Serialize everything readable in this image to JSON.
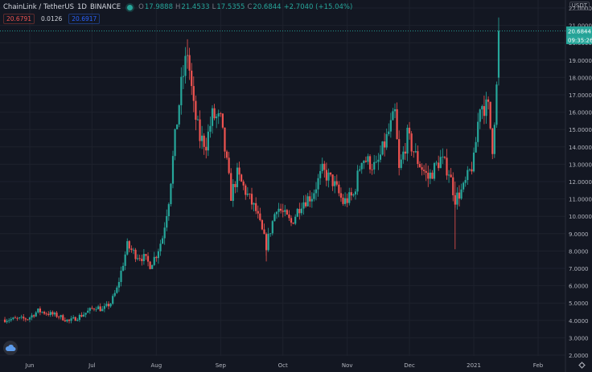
{
  "header": {
    "title": "ChainLink / TetherUS",
    "timeframe": "1D",
    "exchange": "BINANCE",
    "o_label": "O",
    "o_value": "17.9888",
    "h_label": "H",
    "h_value": "21.4533",
    "l_label": "L",
    "l_value": "17.5355",
    "c_label": "C",
    "c_value": "20.6844",
    "change": "+2.7040 (+15.04%)"
  },
  "indicators": {
    "value1": "20.6791",
    "value2": "0.0126",
    "value3": "20.6917"
  },
  "currency_badge": "USDT",
  "last_price_label": "20.6844",
  "countdown_label": "09:35:26",
  "icons": {
    "logo": "cloud-logo-icon",
    "settings": "gear-icon"
  },
  "colors": {
    "up": "#26a69a",
    "down": "#ef5350",
    "background": "#131722",
    "price_line": "#26a69a"
  },
  "chart_data": {
    "type": "candlestick",
    "title": "",
    "xlabel": "",
    "ylabel": "",
    "ylim": [
      1.95,
      22.2
    ],
    "y_ticks": [
      "2.0000",
      "3.0000",
      "4.0000",
      "5.0000",
      "6.0000",
      "7.0000",
      "8.0000",
      "9.0000",
      "10.0000",
      "11.0000",
      "12.0000",
      "13.0000",
      "14.0000",
      "15.0000",
      "16.0000",
      "17.0000",
      "18.0000",
      "19.0000",
      "20.0000",
      "21.0000",
      "22.0000"
    ],
    "x_ticks": [
      "Jun",
      "Jul",
      "Aug",
      "Sep",
      "Oct",
      "Nov",
      "Dec",
      "2021",
      "Feb"
    ],
    "grid": true,
    "last_price": 20.6844,
    "series": [
      {
        "anchors": [
          [
            "2020-05-20",
            4.05
          ],
          [
            "2020-05-31",
            4.1
          ],
          [
            "2020-06-05",
            4.55
          ],
          [
            "2020-06-15",
            4.25
          ],
          [
            "2020-06-20",
            3.95
          ],
          [
            "2020-06-26",
            4.3
          ],
          [
            "2020-07-03",
            4.8
          ],
          [
            "2020-07-06",
            4.6
          ],
          [
            "2020-07-10",
            5.0
          ],
          [
            "2020-07-13",
            5.8
          ],
          [
            "2020-07-18",
            8.3
          ],
          [
            "2020-07-22",
            7.8
          ],
          [
            "2020-07-26",
            7.6
          ],
          [
            "2020-07-29",
            7.2
          ],
          [
            "2020-08-01",
            7.8
          ],
          [
            "2020-08-04",
            8.8
          ],
          [
            "2020-08-07",
            11.0
          ],
          [
            "2020-08-10",
            14.5
          ],
          [
            "2020-08-13",
            17.5
          ],
          [
            "2020-08-16",
            19.5
          ],
          [
            "2020-08-19",
            16.2
          ],
          [
            "2020-08-22",
            14.5
          ],
          [
            "2020-08-25",
            14.2
          ],
          [
            "2020-08-28",
            15.8
          ],
          [
            "2020-09-01",
            15.5
          ],
          [
            "2020-09-04",
            13.0
          ],
          [
            "2020-09-06",
            11.2
          ],
          [
            "2020-09-09",
            12.4
          ],
          [
            "2020-09-14",
            11.2
          ],
          [
            "2020-09-18",
            10.3
          ],
          [
            "2020-09-23",
            8.3
          ],
          [
            "2020-09-28",
            10.6
          ],
          [
            "2020-10-05",
            9.6
          ],
          [
            "2020-10-10",
            10.8
          ],
          [
            "2020-10-15",
            11.2
          ],
          [
            "2020-10-20",
            12.6
          ],
          [
            "2020-10-25",
            12.0
          ],
          [
            "2020-10-30",
            10.8
          ],
          [
            "2020-11-04",
            11.2
          ],
          [
            "2020-11-08",
            13.4
          ],
          [
            "2020-11-15",
            12.8
          ],
          [
            "2020-11-20",
            14.5
          ],
          [
            "2020-11-24",
            15.9
          ],
          [
            "2020-11-26",
            12.6
          ],
          [
            "2020-11-30",
            14.6
          ],
          [
            "2020-12-05",
            13.2
          ],
          [
            "2020-12-10",
            12.2
          ],
          [
            "2020-12-16",
            13.3
          ],
          [
            "2020-12-20",
            12.6
          ],
          [
            "2020-12-23",
            11.0
          ],
          [
            "2020-12-27",
            11.6
          ],
          [
            "2021-01-01",
            13.2
          ],
          [
            "2021-01-04",
            16.5
          ],
          [
            "2021-01-08",
            16.2
          ],
          [
            "2021-01-10",
            14.0
          ],
          [
            "2021-01-12",
            17.4
          ],
          [
            "2021-01-13",
            20.6844
          ]
        ],
        "values_note_source": "daily closes, piecewise-linear between anchors"
      }
    ]
  }
}
